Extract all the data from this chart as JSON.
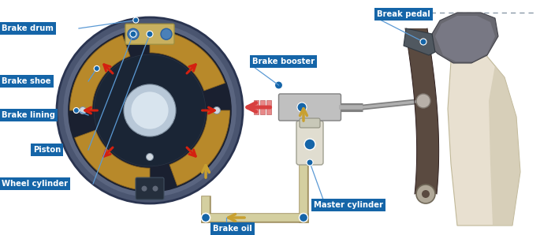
{
  "bg_color": "#ffffff",
  "label_bg": "#1565a8",
  "label_fg": "#ffffff",
  "labels": {
    "wheel_cylinder": "Wheel cylinder",
    "piston": "Piston",
    "brake_lining": "Brake lining",
    "brake_shoe": "Brake shoe",
    "brake_drum": "Brake drum",
    "brake_oil": "Brake oil",
    "master_cylinder": "Master cylinder",
    "brake_booster": "Brake booster",
    "break_pedal": "Break pedal"
  },
  "connector_color": "#5b9ad5",
  "pipe_color": "#d4cfa0",
  "pipe_border": "#a09060",
  "arrow_color": "#c8a030",
  "red_arrow_color": "#d42010",
  "shoe_color": "#b8892a",
  "shoe_dark": "#8a6420",
  "drum_outer_color": "#4a5570",
  "drum_ring_color": "#3a4560"
}
